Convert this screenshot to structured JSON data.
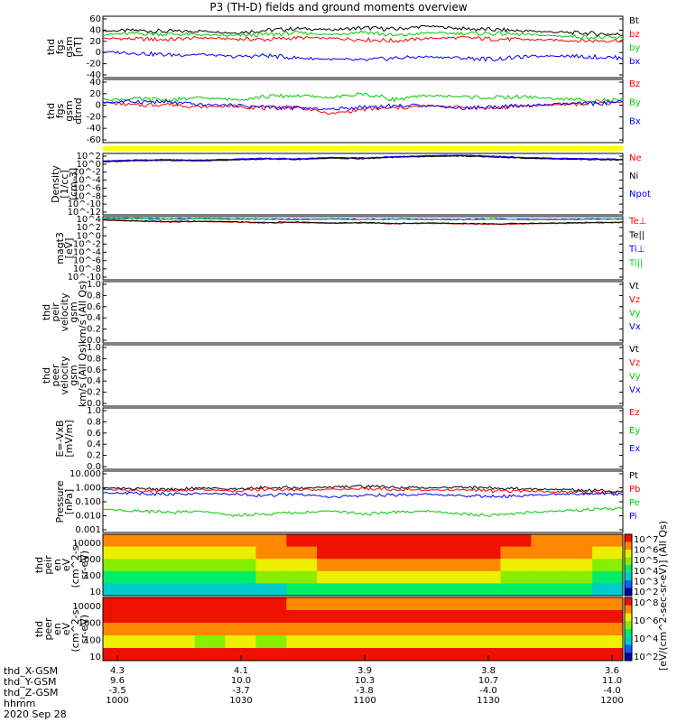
{
  "title": "P3 (TH-D) fields and ground moments overview",
  "date": "2020 Sep 28",
  "footer": {
    "row_labels": [
      "thd_X-GSM",
      "thd_Y-GSM",
      "thd_Z-GSM",
      "hhmm"
    ],
    "columns": [
      [
        "4.3",
        "9.6",
        "-3.5",
        "1000"
      ],
      [
        "4.1",
        "10.0",
        "-3.7",
        "1030"
      ],
      [
        "3.9",
        "10.3",
        "-3.8",
        "1100"
      ],
      [
        "3.8",
        "10.7",
        "-4.0",
        "1130"
      ],
      [
        "3.6",
        "11.0",
        "-4.0",
        "1200"
      ]
    ]
  },
  "colorbar_label": "[eV/(cm^2-sec-sr-eV)] (All Qs)",
  "chart_data": [
    {
      "type": "line",
      "ylabel": [
        "thd",
        "fgs",
        "gsm",
        "[nT]"
      ],
      "ylim": [
        -40,
        60
      ],
      "yticks": [
        "60",
        "40",
        "20",
        "0",
        "-20",
        "-40"
      ],
      "series": [
        {
          "name": "Bt",
          "color": "#000000",
          "values": [
            36,
            37,
            35,
            36,
            33,
            37,
            40,
            38,
            41,
            39,
            44,
            40,
            38,
            36,
            34,
            32,
            30
          ]
        },
        {
          "name": "bz",
          "color": "#ff0000",
          "values": [
            24,
            23,
            22,
            25,
            23,
            22,
            25,
            24,
            22,
            20,
            24,
            25,
            23,
            22,
            21,
            20,
            21
          ]
        },
        {
          "name": "by",
          "color": "#00cc00",
          "values": [
            30,
            32,
            31,
            30,
            28,
            30,
            33,
            30,
            35,
            28,
            33,
            32,
            32,
            30,
            28,
            26,
            24
          ]
        },
        {
          "name": "bx",
          "color": "#0000ff",
          "values": [
            2,
            0,
            -3,
            -2,
            -6,
            -4,
            -8,
            -10,
            -12,
            -8,
            -6,
            -8,
            -10,
            -6,
            -4,
            -6,
            -8
          ]
        }
      ]
    },
    {
      "type": "line",
      "ylabel": [
        "thd",
        "fgs",
        "gsm",
        "dtrnd"
      ],
      "ylim": [
        -70,
        40
      ],
      "yticks": [
        "40",
        "20",
        "0",
        "-20",
        "-40",
        "-60"
      ],
      "series": [
        {
          "name": "Bz",
          "color": "#ff0000",
          "values": [
            0,
            -5,
            -3,
            -8,
            -6,
            -10,
            -8,
            -20,
            -12,
            -10,
            -6,
            -8,
            -10,
            -6,
            -4,
            -2,
            0
          ]
        },
        {
          "name": "By",
          "color": "#00cc00",
          "values": [
            5,
            6,
            4,
            8,
            5,
            10,
            12,
            8,
            15,
            5,
            12,
            10,
            8,
            10,
            6,
            4,
            3
          ]
        },
        {
          "name": "Bx",
          "color": "#0000ff",
          "values": [
            0,
            2,
            0,
            -4,
            -5,
            -8,
            -10,
            -12,
            -8,
            -6,
            -5,
            -10,
            -8,
            -6,
            -3,
            -2,
            0
          ]
        }
      ]
    },
    {
      "type": "line",
      "ylabel": [
        "Density",
        "[1/cc]",
        "[cm-3]"
      ],
      "yticks": [
        "10^2",
        "10^0",
        "10^-2",
        "10^-4",
        "10^-6",
        "10^-8",
        "10^-10",
        "10^-12"
      ],
      "log_ylim": [
        -12,
        2
      ],
      "series": [
        {
          "name": "Ne",
          "color": "#ff0000",
          "values": [
            0.2,
            0.4,
            0.5,
            0.4,
            0.6,
            0.8,
            0.7,
            1.0,
            0.9,
            1.2,
            1.4,
            1.5,
            1.3,
            1.0,
            0.8,
            0.7,
            0.6
          ]
        },
        {
          "name": "Ni",
          "color": "#000000",
          "values": [
            0.1,
            0.3,
            0.4,
            0.3,
            0.5,
            0.7,
            0.6,
            0.9,
            0.8,
            1.1,
            1.3,
            1.4,
            1.2,
            0.9,
            0.7,
            0.6,
            0.5
          ]
        },
        {
          "name": "Npot",
          "color": "#0000ff",
          "values": [
            0.3,
            0.5,
            0.6,
            0.5,
            0.7,
            0.9,
            0.8,
            1.1,
            1.0,
            1.3,
            1.5,
            1.6,
            1.4,
            1.1,
            0.9,
            0.8,
            0.7
          ]
        }
      ]
    },
    {
      "type": "line",
      "ylabel": [
        "magt3",
        "[eV]"
      ],
      "yticks": [
        "10^4",
        "10^2",
        "10^0",
        "10^-2",
        "10^-4",
        "10^-6",
        "10^-8",
        "10^-10"
      ],
      "log_ylim": [
        -10,
        4
      ],
      "series": [
        {
          "name": "Te⊥",
          "color": "#ff0000",
          "values": [
            3.2,
            3.0,
            2.8,
            2.9,
            2.8,
            2.6,
            2.7,
            2.5,
            2.6,
            2.4,
            2.5,
            2.4,
            2.3,
            2.4,
            2.5,
            2.6,
            2.7
          ]
        },
        {
          "name": "Te||",
          "color": "#000000",
          "values": [
            3.3,
            3.1,
            2.9,
            3.0,
            2.9,
            2.7,
            2.8,
            2.6,
            2.7,
            2.5,
            2.6,
            2.5,
            2.4,
            2.5,
            2.6,
            2.7,
            2.8
          ]
        },
        {
          "name": "Ti⊥",
          "color": "#0000ff",
          "values": [
            3.6,
            3.6,
            3.5,
            3.6,
            3.5,
            3.5,
            3.4,
            3.5,
            3.4,
            3.5,
            3.4,
            3.4,
            3.5,
            3.4,
            3.4,
            3.5,
            3.5
          ]
        },
        {
          "name": "Ti||",
          "color": "#00cc00",
          "values": [
            3.5,
            3.5,
            3.4,
            3.5,
            3.4,
            3.4,
            3.3,
            3.4,
            3.3,
            3.4,
            3.3,
            3.3,
            3.4,
            3.3,
            3.3,
            3.4,
            3.4
          ]
        }
      ]
    },
    {
      "type": "line",
      "ylabel": [
        "thd",
        "peir",
        "velocity",
        "gsm",
        "km/s (All Qs)"
      ],
      "ylim": [
        0,
        1
      ],
      "yticks": [
        "1.0",
        "0.8",
        "0.6",
        "0.4",
        "0.2",
        "0.0"
      ],
      "series": [
        {
          "name": "Vt",
          "color": "#000000",
          "values": []
        },
        {
          "name": "Vz",
          "color": "#ff0000",
          "values": []
        },
        {
          "name": "Vy",
          "color": "#00cc00",
          "values": []
        },
        {
          "name": "Vx",
          "color": "#0000ff",
          "values": []
        }
      ]
    },
    {
      "type": "line",
      "ylabel": [
        "thd",
        "peer",
        "velocity",
        "gsm",
        "km/s (All Qs)"
      ],
      "ylim": [
        0,
        1
      ],
      "yticks": [
        "1.0",
        "0.8",
        "0.6",
        "0.4",
        "0.2",
        "0.0"
      ],
      "series": [
        {
          "name": "Vt",
          "color": "#000000",
          "values": []
        },
        {
          "name": "Vz",
          "color": "#ff0000",
          "values": []
        },
        {
          "name": "Vy",
          "color": "#00cc00",
          "values": []
        },
        {
          "name": "Vx",
          "color": "#0000ff",
          "values": []
        }
      ]
    },
    {
      "type": "line",
      "ylabel": [
        "E=-VxB",
        "[mV/m]"
      ],
      "ylim": [
        0,
        1
      ],
      "yticks": [
        "1.0",
        "0.8",
        "0.6",
        "0.4",
        "0.2",
        "0.0"
      ],
      "series": [
        {
          "name": "Ez",
          "color": "#ff0000",
          "values": []
        },
        {
          "name": "Ey",
          "color": "#00cc00",
          "values": []
        },
        {
          "name": "Ex",
          "color": "#0000ff",
          "values": []
        }
      ]
    },
    {
      "type": "line",
      "ylabel": [
        "Pressure",
        "[nPa]"
      ],
      "yticks": [
        "10.000",
        "1.000",
        "0.100",
        "0.010",
        "0.001"
      ],
      "log_ylim": [
        -3,
        1
      ],
      "series": [
        {
          "name": "Pt",
          "color": "#000000",
          "values": [
            -0.1,
            -0.15,
            -0.2,
            -0.1,
            -0.15,
            -0.05,
            -0.1,
            -0.05,
            0.0,
            -0.05,
            -0.1,
            -0.05,
            -0.1,
            -0.15,
            -0.2,
            -0.25,
            -0.3
          ]
        },
        {
          "name": "Pb",
          "color": "#ff0000",
          "values": [
            -0.2,
            -0.25,
            -0.3,
            -0.2,
            -0.3,
            -0.2,
            -0.25,
            -0.2,
            -0.15,
            -0.2,
            -0.25,
            -0.2,
            -0.3,
            -0.3,
            -0.35,
            -0.4,
            -0.4
          ]
        },
        {
          "name": "Pe",
          "color": "#00cc00",
          "values": [
            -1.5,
            -1.6,
            -1.7,
            -1.6,
            -1.9,
            -1.8,
            -1.7,
            -1.6,
            -1.8,
            -1.7,
            -1.6,
            -1.8,
            -1.9,
            -1.7,
            -1.6,
            -1.5,
            -1.4
          ]
        },
        {
          "name": "Pi",
          "color": "#0000ff",
          "values": [
            -0.4,
            -0.45,
            -0.5,
            -0.45,
            -0.5,
            -0.6,
            -0.5,
            -0.7,
            -0.6,
            -0.55,
            -0.5,
            -0.6,
            -0.65,
            -0.6,
            -0.5,
            -0.45,
            -0.5
          ]
        }
      ]
    },
    {
      "type": "heatmap",
      "ylabel": [
        "thd",
        "peir",
        "en",
        "eV",
        "(cm^2-s-",
        "sr-eV)"
      ],
      "yticks": [
        "10000",
        "1000",
        "100",
        "10"
      ],
      "colorbar_ticks": [
        "10^7",
        "10^6",
        "10^5",
        "10^4",
        "10^3",
        "10^2"
      ],
      "rows": [
        [
          6,
          6,
          6,
          6,
          6,
          6,
          7,
          7,
          7,
          7,
          7,
          7,
          7,
          7,
          6,
          6,
          6
        ],
        [
          5,
          5,
          5,
          5,
          5,
          6,
          6,
          7,
          7,
          7,
          7,
          7,
          7,
          6,
          6,
          6,
          5
        ],
        [
          4,
          4,
          4,
          4,
          4,
          5,
          5,
          6,
          6,
          6,
          6,
          6,
          6,
          5,
          5,
          5,
          4
        ],
        [
          3,
          3,
          3,
          3,
          3,
          4,
          4,
          5,
          5,
          5,
          5,
          5,
          5,
          4,
          4,
          4,
          3
        ],
        [
          2,
          2,
          2,
          2,
          2,
          2,
          3,
          3,
          3,
          3,
          3,
          3,
          3,
          3,
          3,
          3,
          2
        ]
      ]
    },
    {
      "type": "heatmap",
      "ylabel": [
        "thd",
        "peer",
        "en",
        "eV",
        "(cm^2-s-",
        "sr-eV)"
      ],
      "yticks": [
        "10000",
        "1000",
        "100",
        "10"
      ],
      "colorbar_ticks": [
        "10^8",
        "10^6",
        "10^4",
        "10^2"
      ],
      "rows": [
        [
          7,
          7,
          7,
          7,
          7,
          7,
          6,
          6,
          6,
          6,
          6,
          6,
          6,
          6,
          6,
          6,
          6
        ],
        [
          7,
          7,
          7,
          7,
          7,
          7,
          7,
          7,
          7,
          7,
          7,
          7,
          7,
          7,
          7,
          7,
          7
        ],
        [
          6,
          6,
          6,
          6,
          6,
          6,
          6,
          6,
          6,
          6,
          6,
          6,
          6,
          6,
          6,
          6,
          6
        ],
        [
          5,
          5,
          5,
          4,
          5,
          4,
          5,
          5,
          5,
          5,
          5,
          5,
          5,
          5,
          5,
          5,
          5
        ],
        [
          7,
          7,
          7,
          7,
          7,
          7,
          7,
          7,
          7,
          7,
          7,
          7,
          7,
          7,
          7,
          7,
          7
        ]
      ]
    }
  ]
}
